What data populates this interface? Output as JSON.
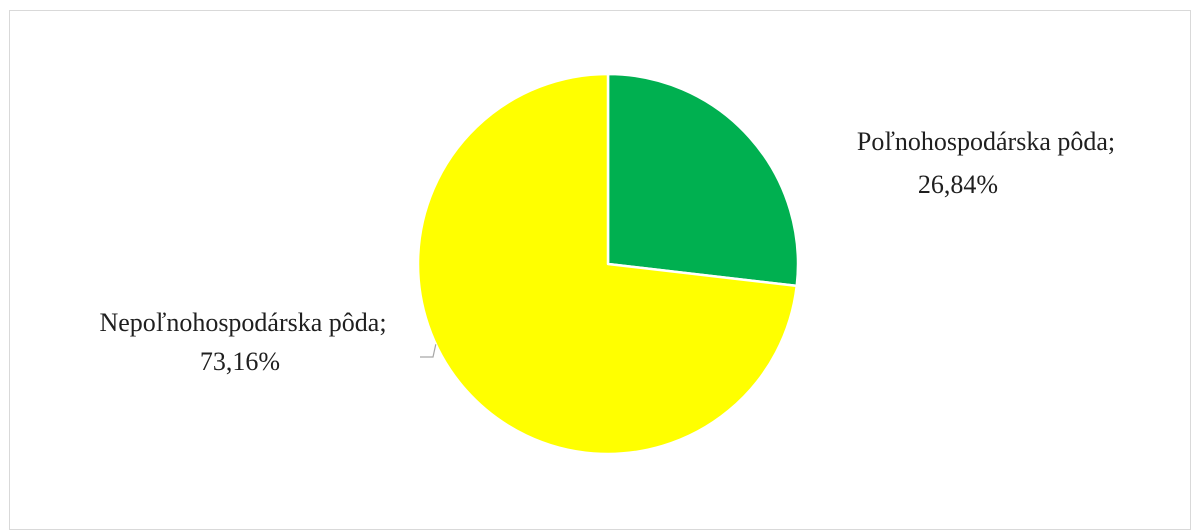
{
  "chart_data": {
    "type": "pie",
    "title": "",
    "start_angle_deg": 0,
    "direction": "clockwise",
    "slices": [
      {
        "name": "Poľnohospodárska pôda",
        "value": 26.84,
        "label": "Poľnohospodárska pôda;",
        "value_label": "26,84%",
        "color": "#00B050"
      },
      {
        "name": "Nepoľnohospodárska pôda",
        "value": 73.16,
        "label": "Nepoľnohospodárska pôda;",
        "value_label": "73,16%",
        "color": "#FFFF00"
      }
    ],
    "legend": "none",
    "data_labels": "outside"
  }
}
